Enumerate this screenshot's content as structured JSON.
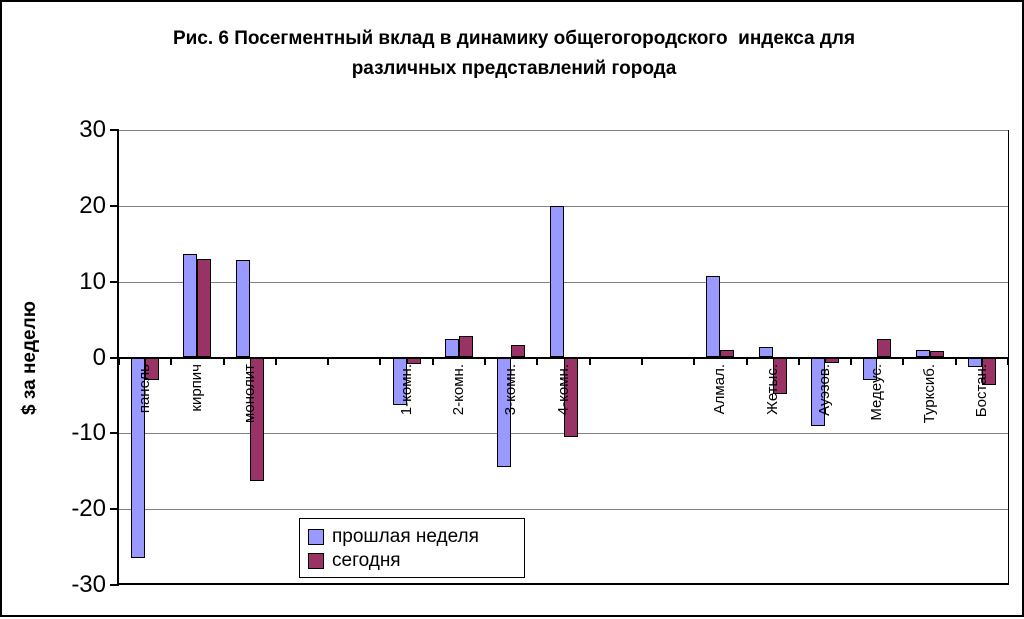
{
  "chart_data": {
    "type": "bar",
    "title": "Рис. 6 Посегментный вклад в динамику общегогородского  индекса для различных представлений города",
    "title_lines": [
      "Рис. 6 Посегментный вклад в динамику общегогородского  индекса для",
      "различных представлений города"
    ],
    "ylabel": "$ за неделю",
    "ylim": [
      -30,
      30
    ],
    "yticks": [
      30,
      20,
      10,
      0,
      -10,
      -20,
      -30
    ],
    "grid": true,
    "legend_position": "bottom-center-inside",
    "categories": [
      "панель",
      "кирпич",
      "монолит",
      "",
      "",
      "1-комн.",
      "2-комн.",
      "3-комн.",
      "4-комн.",
      "",
      "",
      "Алмал.",
      "Жетыс.",
      "Ауэзов.",
      "Медеус.",
      "Турксиб.",
      "Бостан."
    ],
    "series": [
      {
        "name": "прошлая неделя",
        "color": "#9999FF",
        "values": [
          -26.5,
          13.7,
          12.8,
          null,
          null,
          -6.2,
          2.4,
          -14.4,
          20,
          null,
          null,
          10.8,
          1.4,
          -9,
          -3,
          1,
          -1.2
        ]
      },
      {
        "name": "сегодня",
        "color": "#993366",
        "values": [
          -3,
          13,
          -16.3,
          null,
          null,
          -0.9,
          2.9,
          1.6,
          -10.5,
          null,
          null,
          1,
          -4.8,
          -0.7,
          2.4,
          0.8,
          -3.6
        ]
      }
    ]
  },
  "colors": {
    "gridline": "#808080",
    "axis": "#000000",
    "background": "#FFFFFF"
  }
}
